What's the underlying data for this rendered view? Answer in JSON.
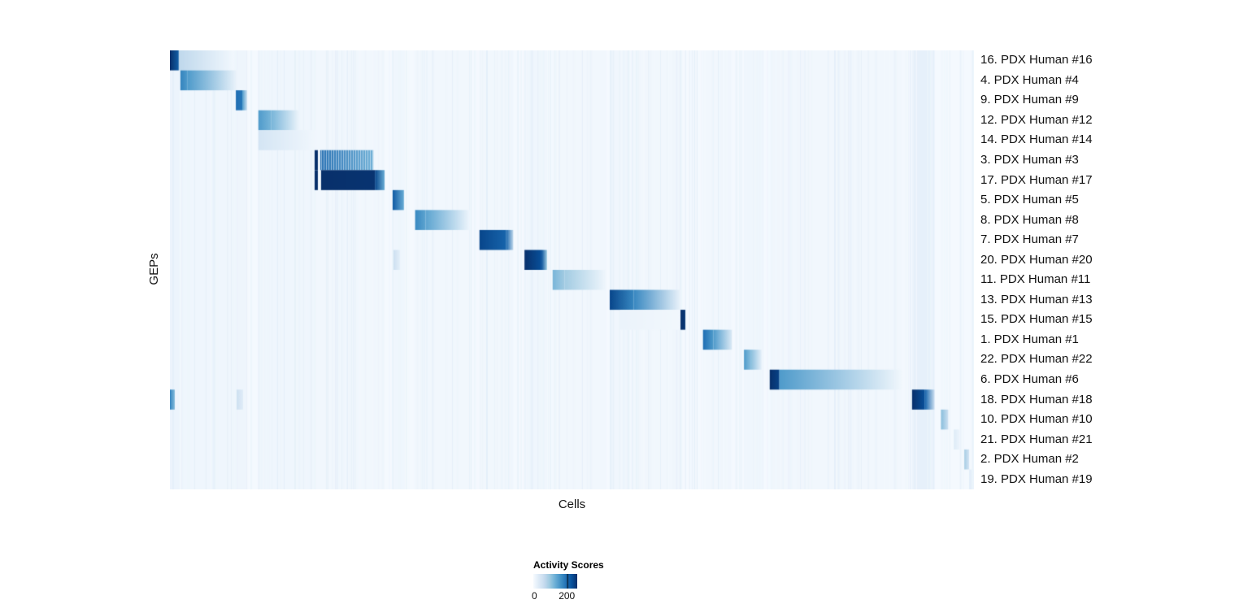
{
  "chart_data": {
    "type": "heatmap",
    "title": "",
    "xlabel": "Cells",
    "ylabel": "GEPs",
    "colormap": "Blues",
    "colormap_stops": [
      "#f7fbff",
      "#deebf7",
      "#c6dbef",
      "#9ecae1",
      "#6baed6",
      "#4292c6",
      "#2171b5",
      "#08519c",
      "#08306b"
    ],
    "value_max": 256,
    "background_value": 4,
    "legend": {
      "title": "Activity Scores",
      "tick_labels": [
        "0",
        "200"
      ],
      "tick_values": [
        0,
        200
      ]
    },
    "noise": {
      "count": 300,
      "min_v": 4,
      "max_v": 24,
      "seed": 987654321
    },
    "column_bands": [
      [
        0.0,
        0.012,
        14
      ],
      [
        0.013,
        0.084,
        10
      ],
      [
        0.082,
        0.095,
        12
      ],
      [
        0.11,
        0.181,
        10
      ],
      [
        0.181,
        0.267,
        8
      ],
      [
        0.276,
        0.292,
        10
      ],
      [
        0.305,
        0.373,
        8
      ],
      [
        0.385,
        0.427,
        8
      ],
      [
        0.441,
        0.469,
        10
      ],
      [
        0.476,
        0.543,
        8
      ],
      [
        0.547,
        0.636,
        8
      ],
      [
        0.663,
        0.699,
        8
      ],
      [
        0.714,
        0.736,
        10
      ],
      [
        0.746,
        0.911,
        8
      ],
      [
        0.923,
        0.951,
        22
      ],
      [
        0.959,
        0.967,
        8
      ]
    ],
    "rows": [
      {
        "label": "16. PDX Human #16",
        "segments": [
          [
            0.0,
            0.011,
            256,
            210
          ],
          [
            0.011,
            0.08,
            70,
            6
          ]
        ]
      },
      {
        "label": "4. PDX Human #4",
        "segments": [
          [
            0.013,
            0.022,
            175,
            150
          ],
          [
            0.022,
            0.084,
            150,
            12
          ]
        ]
      },
      {
        "label": "9. PDX Human #9",
        "segments": [
          [
            0.082,
            0.09,
            195,
            185
          ],
          [
            0.09,
            0.096,
            150,
            55
          ]
        ]
      },
      {
        "label": "12. PDX Human #12",
        "segments": [
          [
            0.11,
            0.126,
            150,
            120
          ],
          [
            0.126,
            0.161,
            120,
            12
          ]
        ]
      },
      {
        "label": "14. PDX Human #14",
        "segments": [
          [
            0.11,
            0.181,
            45,
            8
          ]
        ]
      },
      {
        "label": "3. PDX Human #3",
        "striped": true,
        "segments": [
          [
            0.18,
            0.184,
            256,
            256
          ],
          [
            0.187,
            0.253,
            200,
            130
          ]
        ]
      },
      {
        "label": "17. PDX Human #17",
        "segments": [
          [
            0.18,
            0.184,
            256,
            256
          ],
          [
            0.188,
            0.255,
            256,
            252
          ],
          [
            0.255,
            0.267,
            235,
            130
          ]
        ]
      },
      {
        "label": "5. PDX Human #5",
        "segments": [
          [
            0.277,
            0.291,
            215,
            130
          ]
        ]
      },
      {
        "label": "8. PDX Human #8",
        "segments": [
          [
            0.305,
            0.318,
            170,
            140
          ],
          [
            0.318,
            0.373,
            140,
            10
          ]
        ]
      },
      {
        "label": "7. PDX Human #7",
        "segments": [
          [
            0.385,
            0.418,
            235,
            205
          ],
          [
            0.418,
            0.427,
            205,
            70
          ]
        ]
      },
      {
        "label": "20. PDX Human #20",
        "segments": [
          [
            0.278,
            0.286,
            55,
            25
          ],
          [
            0.441,
            0.462,
            256,
            225
          ],
          [
            0.462,
            0.469,
            225,
            95
          ]
        ]
      },
      {
        "label": "11. PDX Human #11",
        "segments": [
          [
            0.476,
            0.491,
            120,
            92
          ],
          [
            0.491,
            0.543,
            92,
            8
          ]
        ]
      },
      {
        "label": "13. PDX Human #13",
        "segments": [
          [
            0.547,
            0.577,
            235,
            170
          ],
          [
            0.577,
            0.636,
            170,
            12
          ]
        ]
      },
      {
        "label": "15. PDX Human #15",
        "segments": [
          [
            0.635,
            0.641,
            256,
            250
          ],
          [
            0.56,
            0.635,
            16,
            7
          ]
        ]
      },
      {
        "label": "1. PDX Human #1",
        "segments": [
          [
            0.663,
            0.676,
            195,
            150
          ],
          [
            0.676,
            0.699,
            150,
            35
          ]
        ]
      },
      {
        "label": "22. PDX Human #22",
        "segments": [
          [
            0.714,
            0.722,
            150,
            112
          ],
          [
            0.722,
            0.736,
            112,
            22
          ]
        ]
      },
      {
        "label": "6. PDX Human #6",
        "segments": [
          [
            0.746,
            0.758,
            256,
            238
          ],
          [
            0.758,
            0.911,
            150,
            7
          ]
        ]
      },
      {
        "label": "18. PDX Human #18",
        "segments": [
          [
            0.0,
            0.006,
            170,
            115
          ],
          [
            0.083,
            0.091,
            55,
            28
          ],
          [
            0.923,
            0.939,
            256,
            225
          ],
          [
            0.939,
            0.951,
            205,
            55
          ]
        ]
      },
      {
        "label": "10. PDX Human #10",
        "segments": [
          [
            0.959,
            0.968,
            110,
            55
          ]
        ]
      },
      {
        "label": "21. PDX Human #21",
        "segments": [
          [
            0.975,
            0.982,
            32,
            14
          ]
        ]
      },
      {
        "label": "2. PDX Human #2",
        "segments": [
          [
            0.988,
            0.994,
            90,
            45
          ]
        ]
      },
      {
        "label": "19. PDX Human #19",
        "segments": [
          [
            0.994,
            1.0,
            28,
            10
          ]
        ]
      }
    ]
  }
}
